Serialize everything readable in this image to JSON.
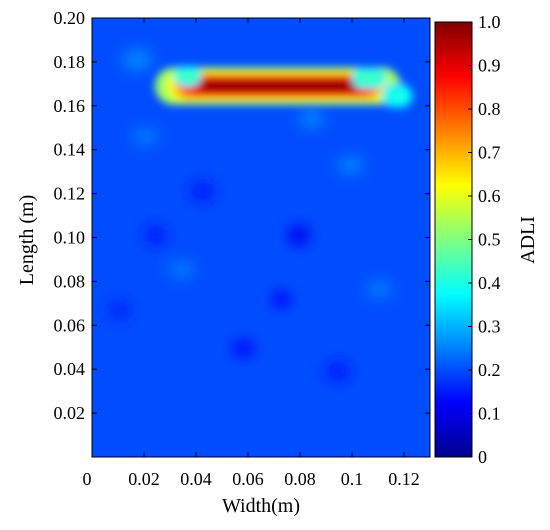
{
  "chart_data": {
    "type": "heatmap",
    "xlabel": "Width(m)",
    "ylabel": "Length (m)",
    "colorbar_label": "ADLI",
    "x_ticks": [
      0,
      0.02,
      0.04,
      0.06,
      0.08,
      0.1,
      0.12
    ],
    "x_tick_labels": [
      "0",
      "0.02",
      "0.04",
      "0.06",
      "0.08",
      "0.1",
      "0.12"
    ],
    "y_ticks": [
      0.02,
      0.04,
      0.06,
      0.08,
      0.1,
      0.12,
      0.14,
      0.16,
      0.18,
      0.2
    ],
    "y_tick_labels": [
      "0.02",
      "0.04",
      "0.06",
      "0.08",
      "0.10",
      "0.12",
      "0.14",
      "0.16",
      "0.18",
      "0.20"
    ],
    "colorbar_ticks": [
      0,
      0.1,
      0.2,
      0.3,
      0.4,
      0.5,
      0.6,
      0.7,
      0.8,
      0.9,
      1.0
    ],
    "colorbar_tick_labels": [
      "0",
      "0.1",
      "0.2",
      "0.3",
      "0.4",
      "0.5",
      "0.6",
      "0.7",
      "0.8",
      "0.9",
      "1.0"
    ],
    "xlim": [
      0,
      0.13
    ],
    "ylim": [
      0,
      0.2
    ],
    "clim": [
      0,
      1.0
    ],
    "colormap": "jet",
    "background_level": 0.2,
    "hotspots": [
      {
        "x": 0.0715,
        "y": 0.169,
        "half_width": 0.036,
        "half_height": 0.0045,
        "peak": 1.0
      },
      {
        "x": 0.0368,
        "y": 0.1735,
        "half_width": 0.004,
        "half_height": 0.0025,
        "peak": 0.45
      },
      {
        "x": 0.1065,
        "y": 0.1725,
        "half_width": 0.005,
        "half_height": 0.0025,
        "peak": 0.45
      },
      {
        "x": 0.1175,
        "y": 0.1645,
        "half_width": 0.0045,
        "half_height": 0.003,
        "peak": 0.4
      }
    ],
    "minor_patches": [
      {
        "x": 0.0795,
        "y": 0.101,
        "half_width": 0.0045,
        "half_height": 0.005,
        "peak": 0.11
      },
      {
        "x": 0.0582,
        "y": 0.0495,
        "half_width": 0.0045,
        "half_height": 0.004,
        "peak": 0.13
      },
      {
        "x": 0.0728,
        "y": 0.0718,
        "half_width": 0.004,
        "half_height": 0.004,
        "peak": 0.13
      },
      {
        "x": 0.0245,
        "y": 0.101,
        "half_width": 0.0045,
        "half_height": 0.005,
        "peak": 0.15
      },
      {
        "x": 0.0425,
        "y": 0.121,
        "half_width": 0.005,
        "half_height": 0.005,
        "peak": 0.15
      },
      {
        "x": 0.0105,
        "y": 0.067,
        "half_width": 0.0045,
        "half_height": 0.005,
        "peak": 0.16
      },
      {
        "x": 0.0945,
        "y": 0.039,
        "half_width": 0.005,
        "half_height": 0.005,
        "peak": 0.15
      },
      {
        "x": 0.0845,
        "y": 0.154,
        "half_width": 0.005,
        "half_height": 0.004,
        "peak": 0.26
      },
      {
        "x": 0.0995,
        "y": 0.133,
        "half_width": 0.005,
        "half_height": 0.004,
        "peak": 0.26
      },
      {
        "x": 0.0205,
        "y": 0.146,
        "half_width": 0.005,
        "half_height": 0.004,
        "peak": 0.25
      },
      {
        "x": 0.0345,
        "y": 0.0855,
        "half_width": 0.005,
        "half_height": 0.004,
        "peak": 0.25
      },
      {
        "x": 0.1105,
        "y": 0.0765,
        "half_width": 0.005,
        "half_height": 0.004,
        "peak": 0.25
      },
      {
        "x": 0.0175,
        "y": 0.181,
        "half_width": 0.006,
        "half_height": 0.005,
        "peak": 0.26
      }
    ]
  }
}
